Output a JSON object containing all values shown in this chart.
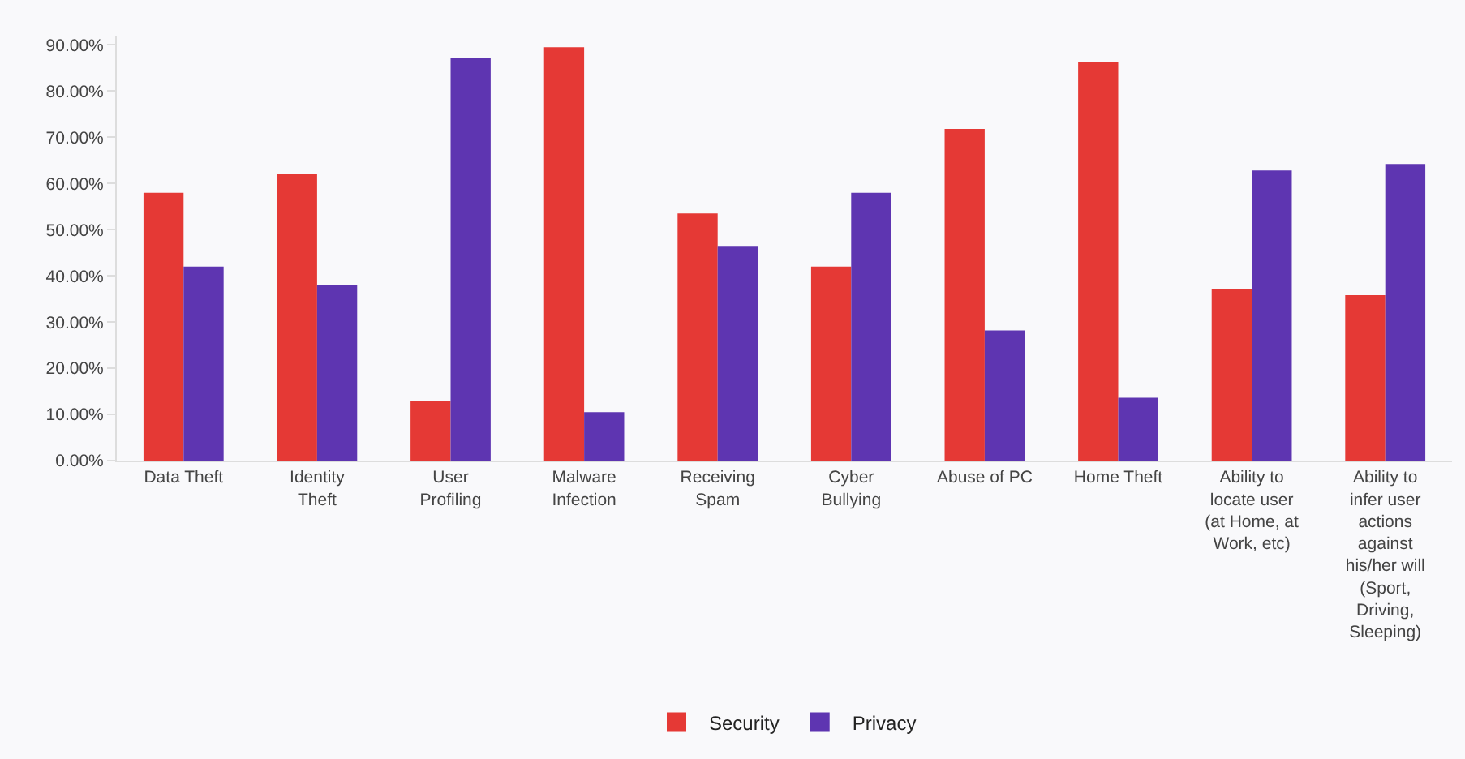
{
  "chart_data": {
    "type": "bar",
    "categories": [
      "Data Theft",
      "Identity Theft",
      "User Profiling",
      "Malware Infection",
      "Receiving Spam",
      "Cyber Bullying",
      "Abuse of PC",
      "Home Theft",
      "Ability to locate user (at Home, at Work, etc)",
      "Ability to infer user actions against his/her will (Sport, Driving, Sleeping)"
    ],
    "series": [
      {
        "name": "Security",
        "color": "#e53935",
        "values": [
          58,
          62,
          12.8,
          89.5,
          53.5,
          42,
          71.8,
          86.4,
          37.2,
          35.8
        ]
      },
      {
        "name": "Privacy",
        "color": "#5e35b1",
        "values": [
          42,
          38,
          87.2,
          10.5,
          46.5,
          58,
          28.2,
          13.6,
          62.8,
          64.2
        ]
      }
    ],
    "ylim": [
      0,
      92
    ],
    "yticks": [
      {
        "value": 0,
        "label": "0.00%"
      },
      {
        "value": 10,
        "label": "10.00%"
      },
      {
        "value": 20,
        "label": "20.00%"
      },
      {
        "value": 30,
        "label": "30.00%"
      },
      {
        "value": 40,
        "label": "40.00%"
      },
      {
        "value": 50,
        "label": "50.00%"
      },
      {
        "value": 60,
        "label": "60.00%"
      },
      {
        "value": 70,
        "label": "70.00%"
      },
      {
        "value": 80,
        "label": "80.00%"
      },
      {
        "value": 90,
        "label": "90.00%"
      }
    ],
    "grid": false,
    "legend": "bottom"
  }
}
